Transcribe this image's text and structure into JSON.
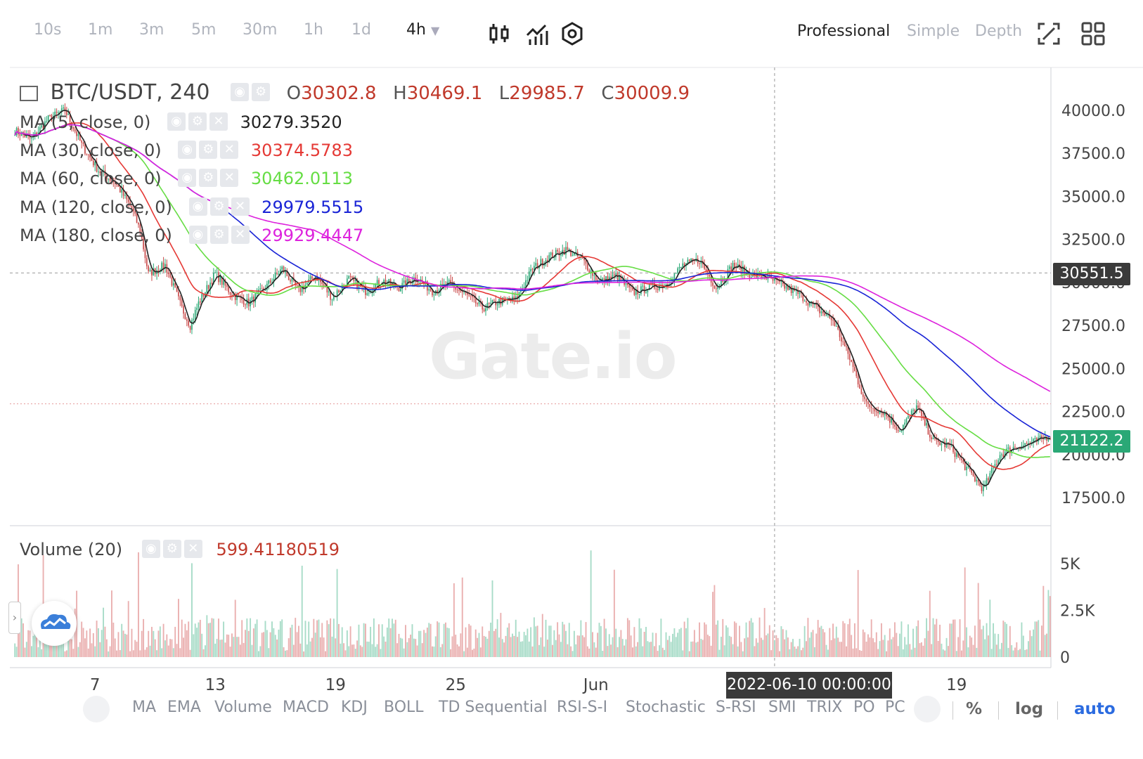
{
  "toolbar": {
    "intervals": [
      "10s",
      "1m",
      "3m",
      "5m",
      "30m",
      "1h",
      "1d",
      "4h"
    ],
    "active_interval": "4h",
    "modes": [
      "Professional",
      "Simple",
      "Depth"
    ],
    "active_mode": "Professional"
  },
  "legend": {
    "symbol": "BTC/USDT, 240",
    "open_label": "O",
    "open": "30302.8",
    "high_label": "H",
    "high": "30469.1",
    "low_label": "L",
    "low": "29985.7",
    "close_label": "C",
    "close": "30009.9",
    "ma": [
      {
        "label": "MA (5, close, 0)",
        "value": "30279.3520",
        "color": "#222222"
      },
      {
        "label": "MA (30, close, 0)",
        "value": "30374.5783",
        "color": "#e53935"
      },
      {
        "label": "MA (60, close, 0)",
        "value": "30462.0113",
        "color": "#66dd44"
      },
      {
        "label": "MA (120, close, 0)",
        "value": "29979.5515",
        "color": "#1a24d6"
      },
      {
        "label": "MA (180, close, 0)",
        "value": "29929.4447",
        "color": "#dd22dd"
      }
    ],
    "volume_label": "Volume (20)",
    "volume_value": "599.41180519"
  },
  "price_tags": {
    "crosshair": "30551.5",
    "last": "21122.2"
  },
  "crosshair_date": "2022-06-10 00:00:00",
  "watermark": "Gate.io",
  "bottom": {
    "indicators": [
      "MA",
      "EMA",
      "Volume",
      "MACD",
      "KDJ",
      "BOLL",
      "TD Sequential",
      "RSI-S-I",
      "Stochastic",
      "S-RSI",
      "SMI",
      "TRIX",
      "PO",
      "PC"
    ],
    "options": [
      "%",
      "log",
      "auto"
    ]
  },
  "chart_data": {
    "type": "candlestick",
    "title": "BTC/USDT, 240",
    "x_tick_labels": [
      "7",
      "13",
      "19",
      "25",
      "Jun",
      "19"
    ],
    "y_ticks": [
      17500,
      20000,
      22500,
      25000,
      27500,
      30000,
      32500,
      35000,
      37500,
      40000
    ],
    "ylim": [
      16000,
      41500
    ],
    "volume_ticks": [
      "0",
      "2.5K",
      "5K"
    ],
    "volume_ylim": [
      0,
      6200
    ],
    "series_colors": {
      "up": "#2aa876",
      "down": "#c94a4a",
      "volume_up": "#a8dcc8",
      "volume_down": "#eab0b0"
    },
    "close_anchor_points": [
      [
        0,
        38800
      ],
      [
        10,
        38300
      ],
      [
        20,
        39500
      ],
      [
        30,
        40000
      ],
      [
        40,
        38000
      ],
      [
        50,
        36500
      ],
      [
        60,
        35800
      ],
      [
        70,
        34300
      ],
      [
        75,
        33000
      ],
      [
        80,
        30500
      ],
      [
        90,
        31000
      ],
      [
        100,
        28500
      ],
      [
        105,
        27500
      ],
      [
        110,
        28800
      ],
      [
        120,
        30500
      ],
      [
        130,
        29300
      ],
      [
        140,
        28800
      ],
      [
        150,
        29700
      ],
      [
        160,
        30800
      ],
      [
        170,
        29500
      ],
      [
        180,
        30400
      ],
      [
        190,
        29100
      ],
      [
        200,
        30200
      ],
      [
        210,
        29500
      ],
      [
        220,
        30100
      ],
      [
        230,
        29700
      ],
      [
        240,
        30300
      ],
      [
        250,
        29500
      ],
      [
        260,
        29900
      ],
      [
        270,
        29300
      ],
      [
        280,
        28500
      ],
      [
        290,
        28900
      ],
      [
        300,
        29000
      ],
      [
        310,
        30800
      ],
      [
        320,
        31500
      ],
      [
        330,
        31900
      ],
      [
        340,
        31300
      ],
      [
        350,
        30000
      ],
      [
        360,
        30400
      ],
      [
        370,
        29400
      ],
      [
        380,
        29700
      ],
      [
        390,
        29900
      ],
      [
        400,
        31000
      ],
      [
        410,
        31300
      ],
      [
        420,
        29700
      ],
      [
        430,
        31000
      ],
      [
        440,
        30500
      ],
      [
        450,
        30300
      ],
      [
        460,
        29800
      ],
      [
        470,
        29300
      ],
      [
        480,
        28500
      ],
      [
        490,
        27800
      ],
      [
        500,
        25600
      ],
      [
        510,
        22900
      ],
      [
        520,
        22500
      ],
      [
        530,
        21400
      ],
      [
        540,
        22800
      ],
      [
        550,
        20800
      ],
      [
        560,
        20500
      ],
      [
        570,
        19200
      ],
      [
        580,
        18000
      ],
      [
        590,
        20000
      ],
      [
        600,
        20500
      ],
      [
        610,
        20700
      ],
      [
        620,
        21122
      ]
    ],
    "candle_count": 621
  }
}
